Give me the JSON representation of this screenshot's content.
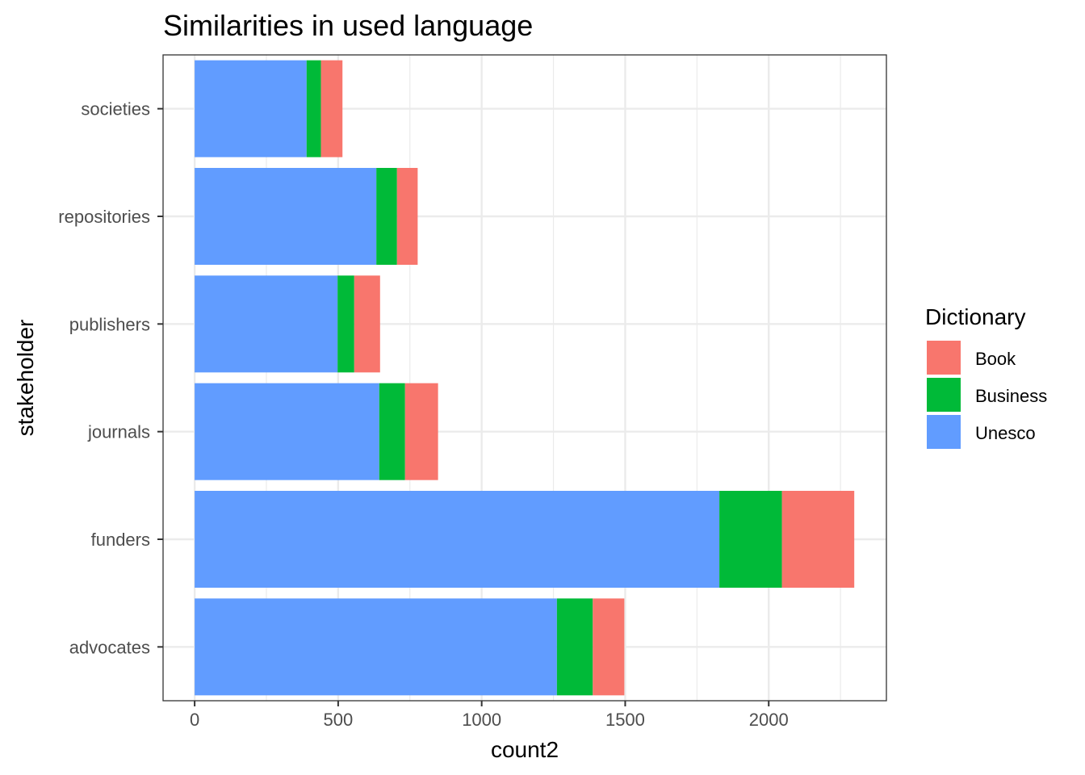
{
  "chart_data": {
    "type": "bar",
    "orientation": "horizontal",
    "stacked": true,
    "title": "Similarities in used language",
    "xlabel": "count2",
    "ylabel": "stakeholder",
    "categories": [
      "advocates",
      "funders",
      "journals",
      "publishers",
      "repositories",
      "societies"
    ],
    "series": [
      {
        "name": "Unesco",
        "color": "#619CFF",
        "values": [
          1262,
          1828,
          643,
          498,
          633,
          390
        ]
      },
      {
        "name": "Business",
        "color": "#00BA38",
        "values": [
          125,
          218,
          90,
          58,
          72,
          50
        ]
      },
      {
        "name": "Book",
        "color": "#F8766D",
        "values": [
          110,
          252,
          115,
          90,
          72,
          75
        ]
      }
    ],
    "xlim": [
      -110,
      2410
    ],
    "xticks": [
      0,
      500,
      1000,
      1500,
      2000
    ],
    "grid": true,
    "legend": {
      "title": "Dictionary",
      "position": "right",
      "entries": [
        "Book",
        "Business",
        "Unesco"
      ]
    }
  }
}
